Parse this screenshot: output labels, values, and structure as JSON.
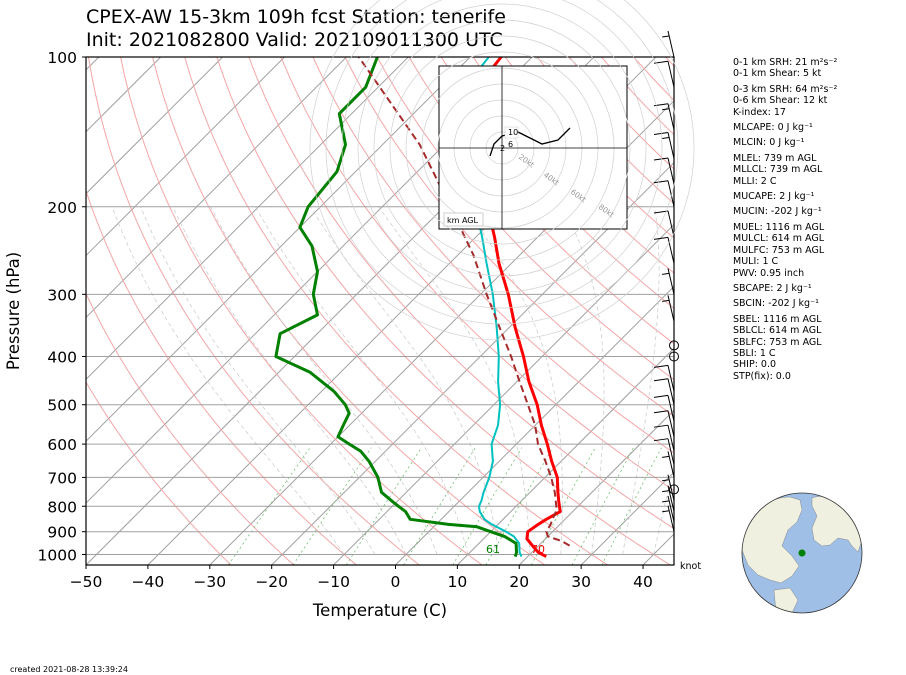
{
  "title_line1": "CPEX-AW 15-3km  109h fcst  Station: tenerife",
  "title_line2": "Init: 2021082800  Valid: 202109011300 UTC",
  "created": "created 2021-08-28 13:39:24",
  "knot_label": "knot",
  "hodograph": {
    "label": "km AGL",
    "speed_rings": [
      "20kt",
      "40kt",
      "60kt",
      "80kt"
    ],
    "height_labels": [
      "10",
      "6",
      "2"
    ],
    "trace_uv": [
      [
        -3,
        -2
      ],
      [
        -2,
        1
      ],
      [
        0,
        3
      ],
      [
        4,
        4
      ],
      [
        10,
        1
      ],
      [
        14,
        2
      ],
      [
        17,
        5
      ]
    ]
  },
  "stats": [
    {
      "text": "0-1 km SRH: 21 m²s⁻²",
      "gap": false
    },
    {
      "text": "0-1 km Shear: 5 kt",
      "gap": false
    },
    {
      "text": "0-3 km SRH: 64 m²s⁻²",
      "gap": true
    },
    {
      "text": "0-6 km Shear: 12 kt",
      "gap": false
    },
    {
      "text": "K-index: 17",
      "gap": false
    },
    {
      "text": "MLCAPE: 0 J kg⁻¹",
      "gap": true
    },
    {
      "text": "MLCIN: 0 J kg⁻¹",
      "gap": true
    },
    {
      "text": "MLEL: 739 m AGL",
      "gap": true
    },
    {
      "text": "MLLCL: 739 m AGL",
      "gap": false
    },
    {
      "text": "MLLI: 2 C",
      "gap": false
    },
    {
      "text": "MUCAPE: 2 J kg⁻¹",
      "gap": true
    },
    {
      "text": "MUCIN: -202 J kg⁻¹",
      "gap": true
    },
    {
      "text": "MUEL: 1116 m AGL",
      "gap": true
    },
    {
      "text": "MULCL: 614 m AGL",
      "gap": false
    },
    {
      "text": "MULFC: 753 m AGL",
      "gap": false
    },
    {
      "text": "MULI: 1 C",
      "gap": false
    },
    {
      "text": "PWV: 0.95 inch",
      "gap": false
    },
    {
      "text": "SBCAPE: 2 J kg⁻¹",
      "gap": true
    },
    {
      "text": "SBCIN: -202 J kg⁻¹",
      "gap": true
    },
    {
      "text": "SBEL: 1116 m AGL",
      "gap": true
    },
    {
      "text": "SBLCL: 614 m AGL",
      "gap": false
    },
    {
      "text": "SBLFC: 753 m AGL",
      "gap": false
    },
    {
      "text": "SBLI: 1 C",
      "gap": false
    },
    {
      "text": "SHIP: 0.0",
      "gap": false
    },
    {
      "text": "STP(fix): 0.0",
      "gap": false
    }
  ],
  "colors": {
    "temperature": "#ff0000",
    "dewpoint": "#008000",
    "wetbulb": "#00c0c0",
    "parcel": "#a52a2a",
    "isobar": "#a0a0a0",
    "isotherm": "#a0a0a0",
    "dry_adiabat": "#f4a6a6",
    "mixing_ratio": "#6fbf6f",
    "globe_land": "#f0f0e0",
    "globe_ocean": "#a0bfe6",
    "station_marker": "#008000"
  },
  "chart_data": {
    "type": "line",
    "xlabel": "Temperature (C)",
    "ylabel": "Pressure (hPa)",
    "xlim": [
      -50,
      45
    ],
    "ylim": [
      1050,
      100
    ],
    "yscale": "log",
    "skew": true,
    "xticks": [
      -50,
      -40,
      -30,
      -20,
      -10,
      0,
      10,
      20,
      30,
      40
    ],
    "yticks": [
      100,
      200,
      300,
      400,
      500,
      600,
      700,
      800,
      900,
      1000
    ],
    "surface_labels": {
      "dewpoint": "61",
      "temperature": "70"
    },
    "series": [
      {
        "key": "temperature",
        "pressure": [
          1010,
          990,
          960,
          930,
          900,
          870,
          850,
          820,
          800,
          780,
          750,
          700,
          650,
          600,
          550,
          500,
          450,
          400,
          350,
          300,
          260,
          230,
          200,
          170,
          150,
          130,
          115,
          100
        ],
        "values": [
          23,
          21,
          19,
          17,
          16,
          16.5,
          17,
          18,
          17,
          16,
          14.5,
          12,
          8.5,
          5,
          1,
          -3,
          -8,
          -13,
          -19,
          -25.5,
          -32,
          -37,
          -43,
          -50.5,
          -55.5,
          -61,
          -64,
          -65
        ]
      },
      {
        "key": "dewpoint",
        "pressure": [
          1010,
          990,
          950,
          920,
          900,
          880,
          870,
          850,
          820,
          800,
          780,
          750,
          700,
          650,
          620,
          600,
          580,
          550,
          520,
          500,
          470,
          430,
          400,
          360,
          330,
          300,
          270,
          240,
          220,
          200,
          170,
          150,
          130,
          115,
          100
        ],
        "values": [
          18,
          17.5,
          16,
          13,
          10,
          7,
          2,
          -5,
          -7,
          -9,
          -11,
          -14,
          -17,
          -21,
          -24,
          -27,
          -30,
          -31,
          -32,
          -34,
          -38,
          -45,
          -53,
          -56,
          -53,
          -57,
          -60,
          -65,
          -70,
          -72,
          -73,
          -76,
          -82,
          -82,
          -85
        ]
      },
      {
        "key": "wetbulb",
        "pressure": [
          1010,
          990,
          950,
          920,
          900,
          870,
          850,
          820,
          800,
          780,
          750,
          700,
          650,
          600,
          550,
          500,
          450,
          400,
          350,
          300,
          260,
          230,
          200,
          170,
          150,
          130,
          115,
          100
        ],
        "values": [
          19,
          18,
          16.5,
          14.5,
          12.5,
          9,
          7,
          5,
          4,
          3.5,
          2.5,
          1,
          -1,
          -4,
          -6,
          -9,
          -13,
          -17,
          -22,
          -28,
          -34,
          -39,
          -45,
          -52,
          -57,
          -63,
          -66,
          -67
        ]
      },
      {
        "key": "parcel",
        "pressure": [
          960,
          940,
          920,
          900,
          870,
          850,
          820,
          800,
          750,
          700,
          650,
          600,
          550,
          500,
          450,
          400,
          350,
          300,
          250,
          200,
          150,
          100
        ],
        "values": [
          25,
          23,
          20,
          19,
          18.5,
          18,
          17.3,
          16.5,
          14,
          11,
          7.5,
          3.5,
          0,
          -4.5,
          -9.5,
          -15,
          -21.5,
          -29,
          -37.5,
          -49,
          -64,
          -88
        ]
      }
    ],
    "wind_barbs_kt": [
      {
        "p": 100,
        "speed": 5
      },
      {
        "p": 115,
        "speed": 10
      },
      {
        "p": 140,
        "speed": 15
      },
      {
        "p": 160,
        "speed": 15
      },
      {
        "p": 180,
        "speed": 10
      },
      {
        "p": 200,
        "speed": 10
      },
      {
        "p": 230,
        "speed": 10
      },
      {
        "p": 260,
        "speed": 10
      },
      {
        "p": 300,
        "speed": 5
      },
      {
        "p": 340,
        "speed": 5
      },
      {
        "p": 380,
        "speed": 0
      },
      {
        "p": 400,
        "speed": 0
      },
      {
        "p": 470,
        "speed": 10
      },
      {
        "p": 500,
        "speed": 10
      },
      {
        "p": 540,
        "speed": 10
      },
      {
        "p": 580,
        "speed": 10
      },
      {
        "p": 620,
        "speed": 10
      },
      {
        "p": 660,
        "speed": 10
      },
      {
        "p": 700,
        "speed": 5
      },
      {
        "p": 740,
        "speed": 0
      },
      {
        "p": 780,
        "speed": 5
      },
      {
        "p": 820,
        "speed": 5
      },
      {
        "p": 860,
        "speed": 5
      },
      {
        "p": 900,
        "speed": 5
      }
    ]
  }
}
